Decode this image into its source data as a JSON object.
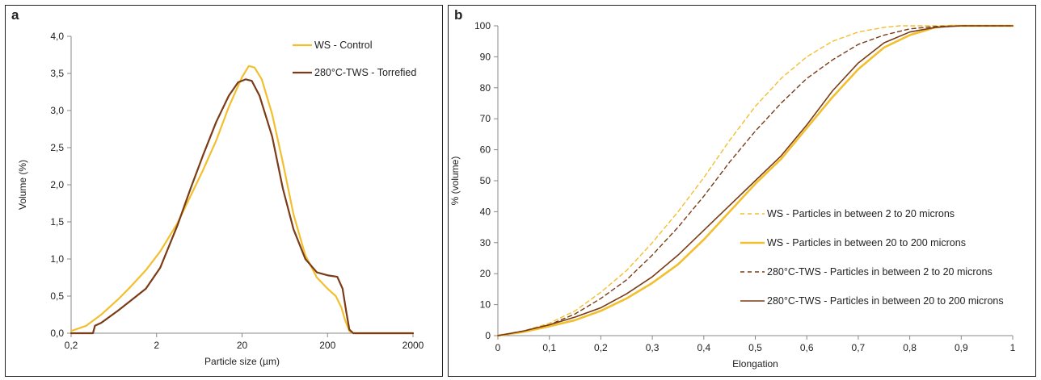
{
  "panels": {
    "a": {
      "letter": "a"
    },
    "b": {
      "letter": "b"
    }
  },
  "colors": {
    "ws": "#f2bf2e",
    "twt": "#7a3b17",
    "axis": "#888888"
  },
  "chart_data": [
    {
      "id": "a",
      "type": "line",
      "title": "",
      "xlabel": "Particle size (µm)",
      "ylabel": "Volume (%)",
      "xscale": "log",
      "xlim": [
        0.2,
        2000
      ],
      "ylim": [
        0,
        4.0
      ],
      "xticks": [
        0.2,
        2,
        20,
        200,
        2000
      ],
      "xtick_labels": [
        "0,2",
        "2",
        "20",
        "200",
        "2000"
      ],
      "yticks": [
        0,
        0.5,
        1.0,
        1.5,
        2.0,
        2.5,
        3.0,
        3.5,
        4.0
      ],
      "ytick_labels": [
        "0,0",
        "0,5",
        "1,0",
        "1,5",
        "2,0",
        "2,5",
        "3,0",
        "3,5",
        "4,0"
      ],
      "grid": false,
      "legend_position": "top-right",
      "series": [
        {
          "name": "WS - Control",
          "color": "#f2bf2e",
          "dash": "solid",
          "x": [
            0.2,
            0.3,
            0.45,
            0.7,
            1.0,
            1.5,
            2.2,
            3.5,
            5.0,
            7.0,
            10,
            14,
            20,
            24,
            28,
            34,
            45,
            60,
            80,
            110,
            150,
            200,
            250,
            290,
            320,
            360,
            400,
            2000
          ],
          "y": [
            0.03,
            0.1,
            0.25,
            0.45,
            0.63,
            0.85,
            1.1,
            1.48,
            1.85,
            2.2,
            2.6,
            3.05,
            3.45,
            3.6,
            3.58,
            3.42,
            2.95,
            2.3,
            1.6,
            1.05,
            0.75,
            0.6,
            0.5,
            0.35,
            0.18,
            0.03,
            0.0,
            0.0
          ]
        },
        {
          "name": "280°C-TWS - Torrefied",
          "color": "#7a3b17",
          "dash": "solid",
          "x": [
            0.2,
            0.36,
            0.38,
            0.45,
            0.7,
            1.0,
            1.5,
            2.2,
            3.5,
            5.0,
            7.0,
            10,
            14,
            18,
            22,
            26,
            32,
            45,
            60,
            80,
            110,
            150,
            200,
            260,
            300,
            330,
            360,
            400,
            420,
            2000
          ],
          "y": [
            0.0,
            0.0,
            0.1,
            0.14,
            0.3,
            0.44,
            0.6,
            0.88,
            1.45,
            1.95,
            2.4,
            2.85,
            3.2,
            3.38,
            3.42,
            3.4,
            3.2,
            2.65,
            1.95,
            1.4,
            1.0,
            0.82,
            0.78,
            0.76,
            0.6,
            0.3,
            0.05,
            0.0,
            0.0,
            0.0
          ]
        }
      ]
    },
    {
      "id": "b",
      "type": "line",
      "title": "",
      "xlabel": "Elongation",
      "ylabel": "% (volume)",
      "xlim": [
        0,
        1
      ],
      "ylim": [
        0,
        100
      ],
      "xticks": [
        0,
        0.1,
        0.2,
        0.3,
        0.4,
        0.5,
        0.6,
        0.7,
        0.8,
        0.9,
        1
      ],
      "xtick_labels": [
        "0",
        "0,1",
        "0,2",
        "0,3",
        "0,4",
        "0,5",
        "0,6",
        "0,7",
        "0,8",
        "0,9",
        "1"
      ],
      "yticks": [
        0,
        10,
        20,
        30,
        40,
        50,
        60,
        70,
        80,
        90,
        100
      ],
      "ytick_labels": [
        "0",
        "10",
        "20",
        "30",
        "40",
        "50",
        "60",
        "70",
        "80",
        "90",
        "100"
      ],
      "grid": false,
      "legend_position": "bottom-right",
      "series": [
        {
          "name": "WS - Particles in between 2 to 20 microns",
          "color": "#f2bf2e",
          "dash": "dashed",
          "width": 1.4,
          "x": [
            0,
            0.05,
            0.1,
            0.15,
            0.2,
            0.25,
            0.3,
            0.35,
            0.4,
            0.45,
            0.5,
            0.55,
            0.6,
            0.65,
            0.7,
            0.75,
            0.78,
            0.8,
            0.9,
            1.0
          ],
          "y": [
            0,
            1.5,
            4,
            8,
            14,
            21,
            30,
            40,
            51,
            63,
            74,
            83,
            90,
            95,
            98,
            99.5,
            100,
            100,
            100,
            100
          ]
        },
        {
          "name": "WS - Particles in between 20 to 200 microns",
          "color": "#f2bf2e",
          "dash": "solid",
          "width": 2.6,
          "x": [
            0,
            0.05,
            0.1,
            0.15,
            0.2,
            0.25,
            0.3,
            0.35,
            0.4,
            0.45,
            0.5,
            0.55,
            0.6,
            0.65,
            0.7,
            0.75,
            0.8,
            0.85,
            0.88,
            0.9,
            1.0
          ],
          "y": [
            0,
            1.2,
            3,
            5,
            8,
            12,
            17,
            23,
            31,
            40,
            49,
            57,
            67,
            77,
            86,
            93,
            97,
            99.5,
            100,
            100,
            100
          ]
        },
        {
          "name": "280°C-TWS - Particles in between 2 to 20 microns",
          "color": "#7a3b17",
          "dash": "dashed",
          "width": 1.4,
          "x": [
            0,
            0.05,
            0.1,
            0.15,
            0.2,
            0.25,
            0.3,
            0.35,
            0.4,
            0.45,
            0.5,
            0.55,
            0.6,
            0.65,
            0.7,
            0.75,
            0.8,
            0.85,
            0.9,
            1.0
          ],
          "y": [
            0,
            1.5,
            3.5,
            7,
            12,
            18,
            26,
            35,
            45,
            56,
            66,
            75,
            83,
            89,
            94,
            97,
            99,
            99.8,
            100,
            100
          ]
        },
        {
          "name": "280°C-TWS - Particles in between 20 to 200 microns",
          "color": "#7a3b17",
          "dash": "solid",
          "width": 1.6,
          "x": [
            0,
            0.05,
            0.1,
            0.15,
            0.2,
            0.25,
            0.3,
            0.35,
            0.4,
            0.45,
            0.5,
            0.55,
            0.6,
            0.65,
            0.7,
            0.75,
            0.8,
            0.85,
            0.9,
            1.0
          ],
          "y": [
            0,
            1.5,
            3.5,
            6,
            9,
            13.5,
            19,
            26,
            34,
            42,
            50,
            58,
            68,
            79,
            88,
            94.5,
            98,
            99.5,
            100,
            100
          ]
        }
      ]
    }
  ]
}
